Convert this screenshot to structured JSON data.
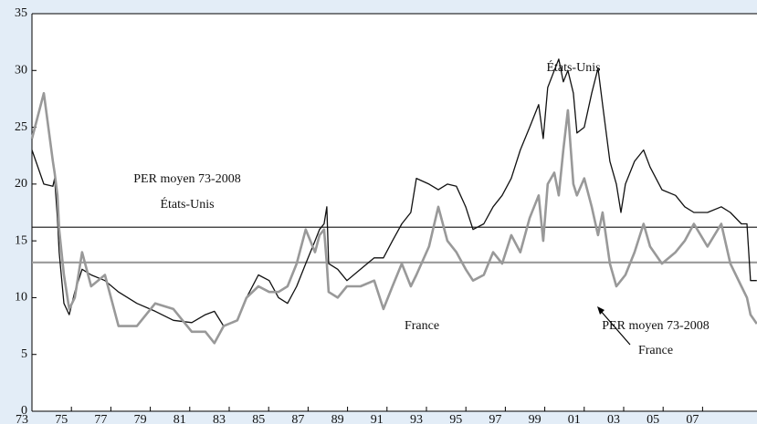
{
  "chart_data": {
    "type": "line",
    "x": [
      73.0,
      73.6,
      74.06,
      74.15,
      74.29,
      74.38,
      74.62,
      74.89,
      75.17,
      75.54,
      76.0,
      76.7,
      77.39,
      78.32,
      79.25,
      80.17,
      81.1,
      81.79,
      82.25,
      82.72,
      83.41,
      83.88,
      84.48,
      85.03,
      85.5,
      85.96,
      86.42,
      86.88,
      87.35,
      87.58,
      87.81,
      87.95,
      88.04,
      88.5,
      88.97,
      89.66,
      90.35,
      90.82,
      91.28,
      91.75,
      92.21,
      92.49,
      93.13,
      93.6,
      94.06,
      94.52,
      94.99,
      95.36,
      95.91,
      96.38,
      96.84,
      97.3,
      97.76,
      98.23,
      98.69,
      98.92,
      99.15,
      99.48,
      99.71,
      99.94,
      100.17,
      100.45,
      100.63,
      101.0,
      101.38,
      101.7,
      101.93,
      102.3,
      102.63,
      102.86,
      103.09,
      103.55,
      104.01,
      104.34,
      104.94,
      105.63,
      106.1,
      106.56,
      107.25,
      107.95,
      108.41,
      108.97,
      109.25,
      109.43,
      109.75
    ],
    "series": [
      {
        "name": "États-Unis",
        "color": "#111111",
        "width": 1.3,
        "values": [
          23,
          20,
          19.8,
          20.5,
          17,
          14,
          9.5,
          8.5,
          10.5,
          12.5,
          12,
          11.5,
          10.5,
          9.5,
          8.8,
          8,
          7.8,
          8.5,
          8.8,
          7.5,
          8,
          10,
          12,
          11.5,
          10,
          9.5,
          11,
          13,
          15,
          16,
          16.5,
          18,
          13,
          12.5,
          11.5,
          12.5,
          13.5,
          13.5,
          15,
          16.5,
          17.5,
          20.5,
          20,
          19.5,
          20,
          19.8,
          18,
          16,
          16.5,
          18,
          19,
          20.5,
          23,
          25,
          27,
          24,
          28.5,
          30,
          31,
          29,
          30,
          28,
          24.5,
          25,
          28,
          30.2,
          27,
          22,
          20,
          17.5,
          20,
          22,
          23,
          21.5,
          19.5,
          19,
          18,
          17.5,
          17.5,
          18,
          17.5,
          16.5,
          16.5,
          11.5,
          11.5
        ]
      },
      {
        "name": "France",
        "color": "#999999",
        "width": 2.6,
        "values": [
          24,
          28,
          22,
          21,
          19,
          16,
          12,
          9,
          10,
          14,
          11,
          12,
          7.5,
          7.5,
          9.5,
          9,
          7,
          7,
          6,
          7.5,
          8,
          10,
          11,
          10.5,
          10.5,
          11,
          13,
          16,
          14,
          15.5,
          16,
          13,
          10.5,
          10,
          11,
          11,
          11.5,
          9,
          11,
          13,
          11,
          12,
          14.5,
          18,
          15,
          14,
          12.5,
          11.5,
          12,
          14,
          13,
          15.5,
          14,
          17,
          19,
          15,
          20,
          21,
          19,
          23,
          26.5,
          20,
          19,
          20.5,
          18,
          15.5,
          17.5,
          13,
          11,
          11.5,
          12,
          14,
          16.5,
          14.5,
          13,
          14,
          15,
          16.5,
          14.5,
          16.5,
          13,
          11,
          10,
          8.5,
          7.7
        ]
      }
    ],
    "reference_lines": [
      {
        "value": 16.2,
        "color": "#111111",
        "label": [
          "PER moyen 73-2008",
          "États-Unis"
        ]
      },
      {
        "value": 13.1,
        "color": "#999999",
        "label": [
          "PER moyen 73-2008",
          "France"
        ]
      }
    ],
    "xlim": [
      73,
      109.76
    ],
    "xticks": [
      73,
      75,
      77,
      79,
      81,
      83,
      85,
      87,
      89,
      91,
      93,
      95,
      97,
      99,
      {
        "value": 101,
        "label": "01"
      },
      {
        "value": 103,
        "label": "03"
      },
      {
        "value": 105,
        "label": "05"
      },
      {
        "value": 107,
        "label": "07"
      }
    ],
    "ylim": [
      0,
      35
    ],
    "yticks": [
      0,
      5,
      10,
      15,
      20,
      25,
      30,
      35
    ],
    "grid": false
  }
}
